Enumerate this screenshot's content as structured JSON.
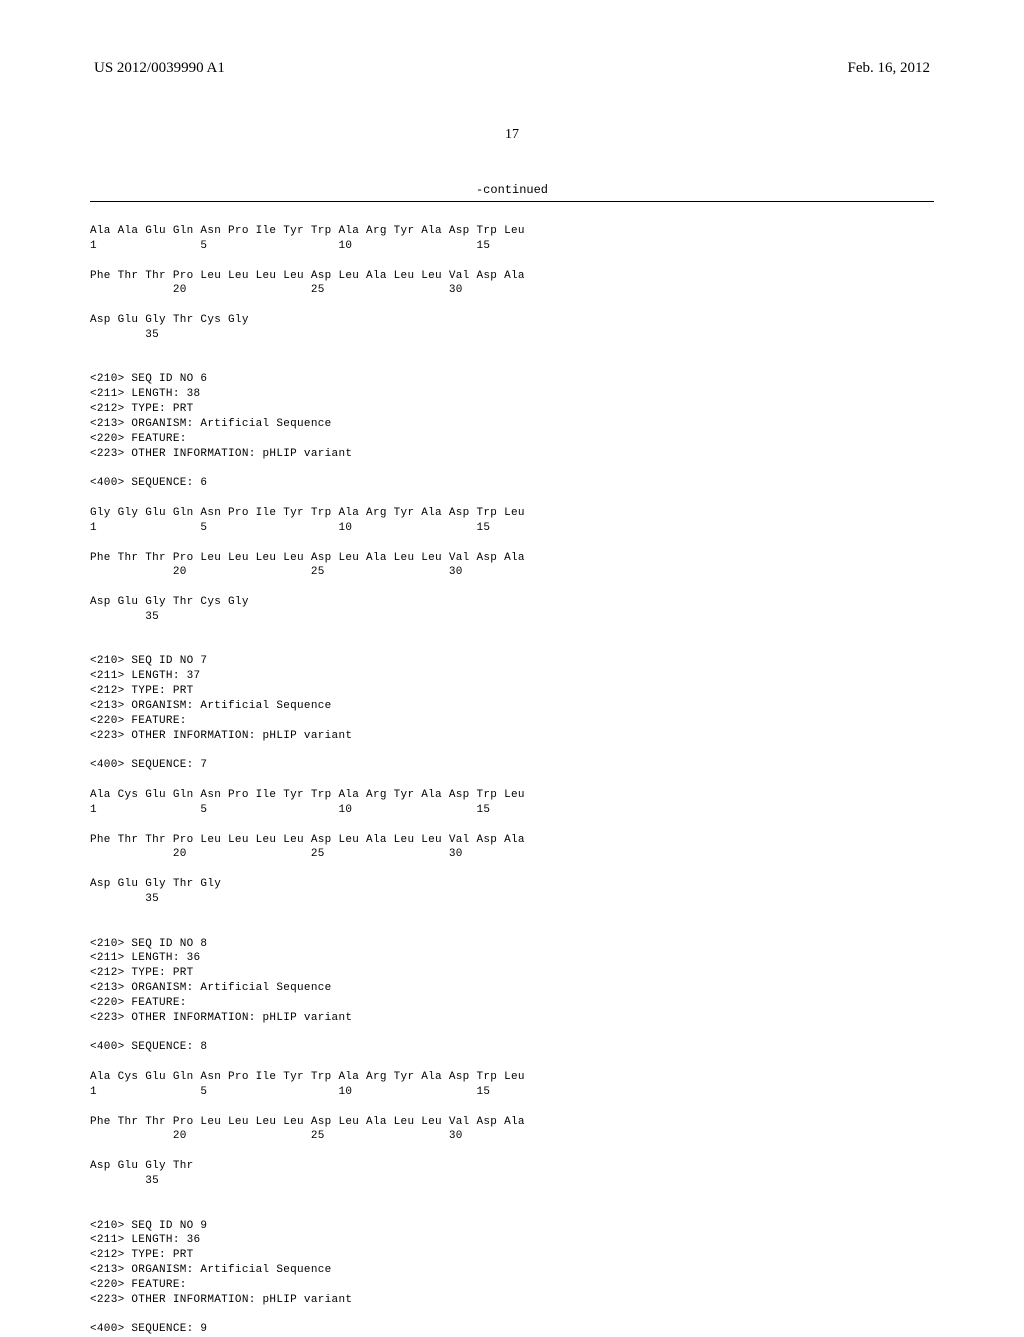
{
  "header": {
    "pub_number": "US 2012/0039990 A1",
    "pub_date": "Feb. 16, 2012"
  },
  "page_number": "17",
  "continued_label": "-continued",
  "sequence_text": "Ala Ala Glu Gln Asn Pro Ile Tyr Trp Ala Arg Tyr Ala Asp Trp Leu\n1               5                   10                  15\n\nPhe Thr Thr Pro Leu Leu Leu Leu Asp Leu Ala Leu Leu Val Asp Ala\n            20                  25                  30\n\nAsp Glu Gly Thr Cys Gly\n        35\n\n\n<210> SEQ ID NO 6\n<211> LENGTH: 38\n<212> TYPE: PRT\n<213> ORGANISM: Artificial Sequence\n<220> FEATURE:\n<223> OTHER INFORMATION: pHLIP variant\n\n<400> SEQUENCE: 6\n\nGly Gly Glu Gln Asn Pro Ile Tyr Trp Ala Arg Tyr Ala Asp Trp Leu\n1               5                   10                  15\n\nPhe Thr Thr Pro Leu Leu Leu Leu Asp Leu Ala Leu Leu Val Asp Ala\n            20                  25                  30\n\nAsp Glu Gly Thr Cys Gly\n        35\n\n\n<210> SEQ ID NO 7\n<211> LENGTH: 37\n<212> TYPE: PRT\n<213> ORGANISM: Artificial Sequence\n<220> FEATURE:\n<223> OTHER INFORMATION: pHLIP variant\n\n<400> SEQUENCE: 7\n\nAla Cys Glu Gln Asn Pro Ile Tyr Trp Ala Arg Tyr Ala Asp Trp Leu\n1               5                   10                  15\n\nPhe Thr Thr Pro Leu Leu Leu Leu Asp Leu Ala Leu Leu Val Asp Ala\n            20                  25                  30\n\nAsp Glu Gly Thr Gly\n        35\n\n\n<210> SEQ ID NO 8\n<211> LENGTH: 36\n<212> TYPE: PRT\n<213> ORGANISM: Artificial Sequence\n<220> FEATURE:\n<223> OTHER INFORMATION: pHLIP variant\n\n<400> SEQUENCE: 8\n\nAla Cys Glu Gln Asn Pro Ile Tyr Trp Ala Arg Tyr Ala Asp Trp Leu\n1               5                   10                  15\n\nPhe Thr Thr Pro Leu Leu Leu Leu Asp Leu Ala Leu Leu Val Asp Ala\n            20                  25                  30\n\nAsp Glu Gly Thr\n        35\n\n\n<210> SEQ ID NO 9\n<211> LENGTH: 36\n<212> TYPE: PRT\n<213> ORGANISM: Artificial Sequence\n<220> FEATURE:\n<223> OTHER INFORMATION: pHLIP variant\n\n<400> SEQUENCE: 9"
}
